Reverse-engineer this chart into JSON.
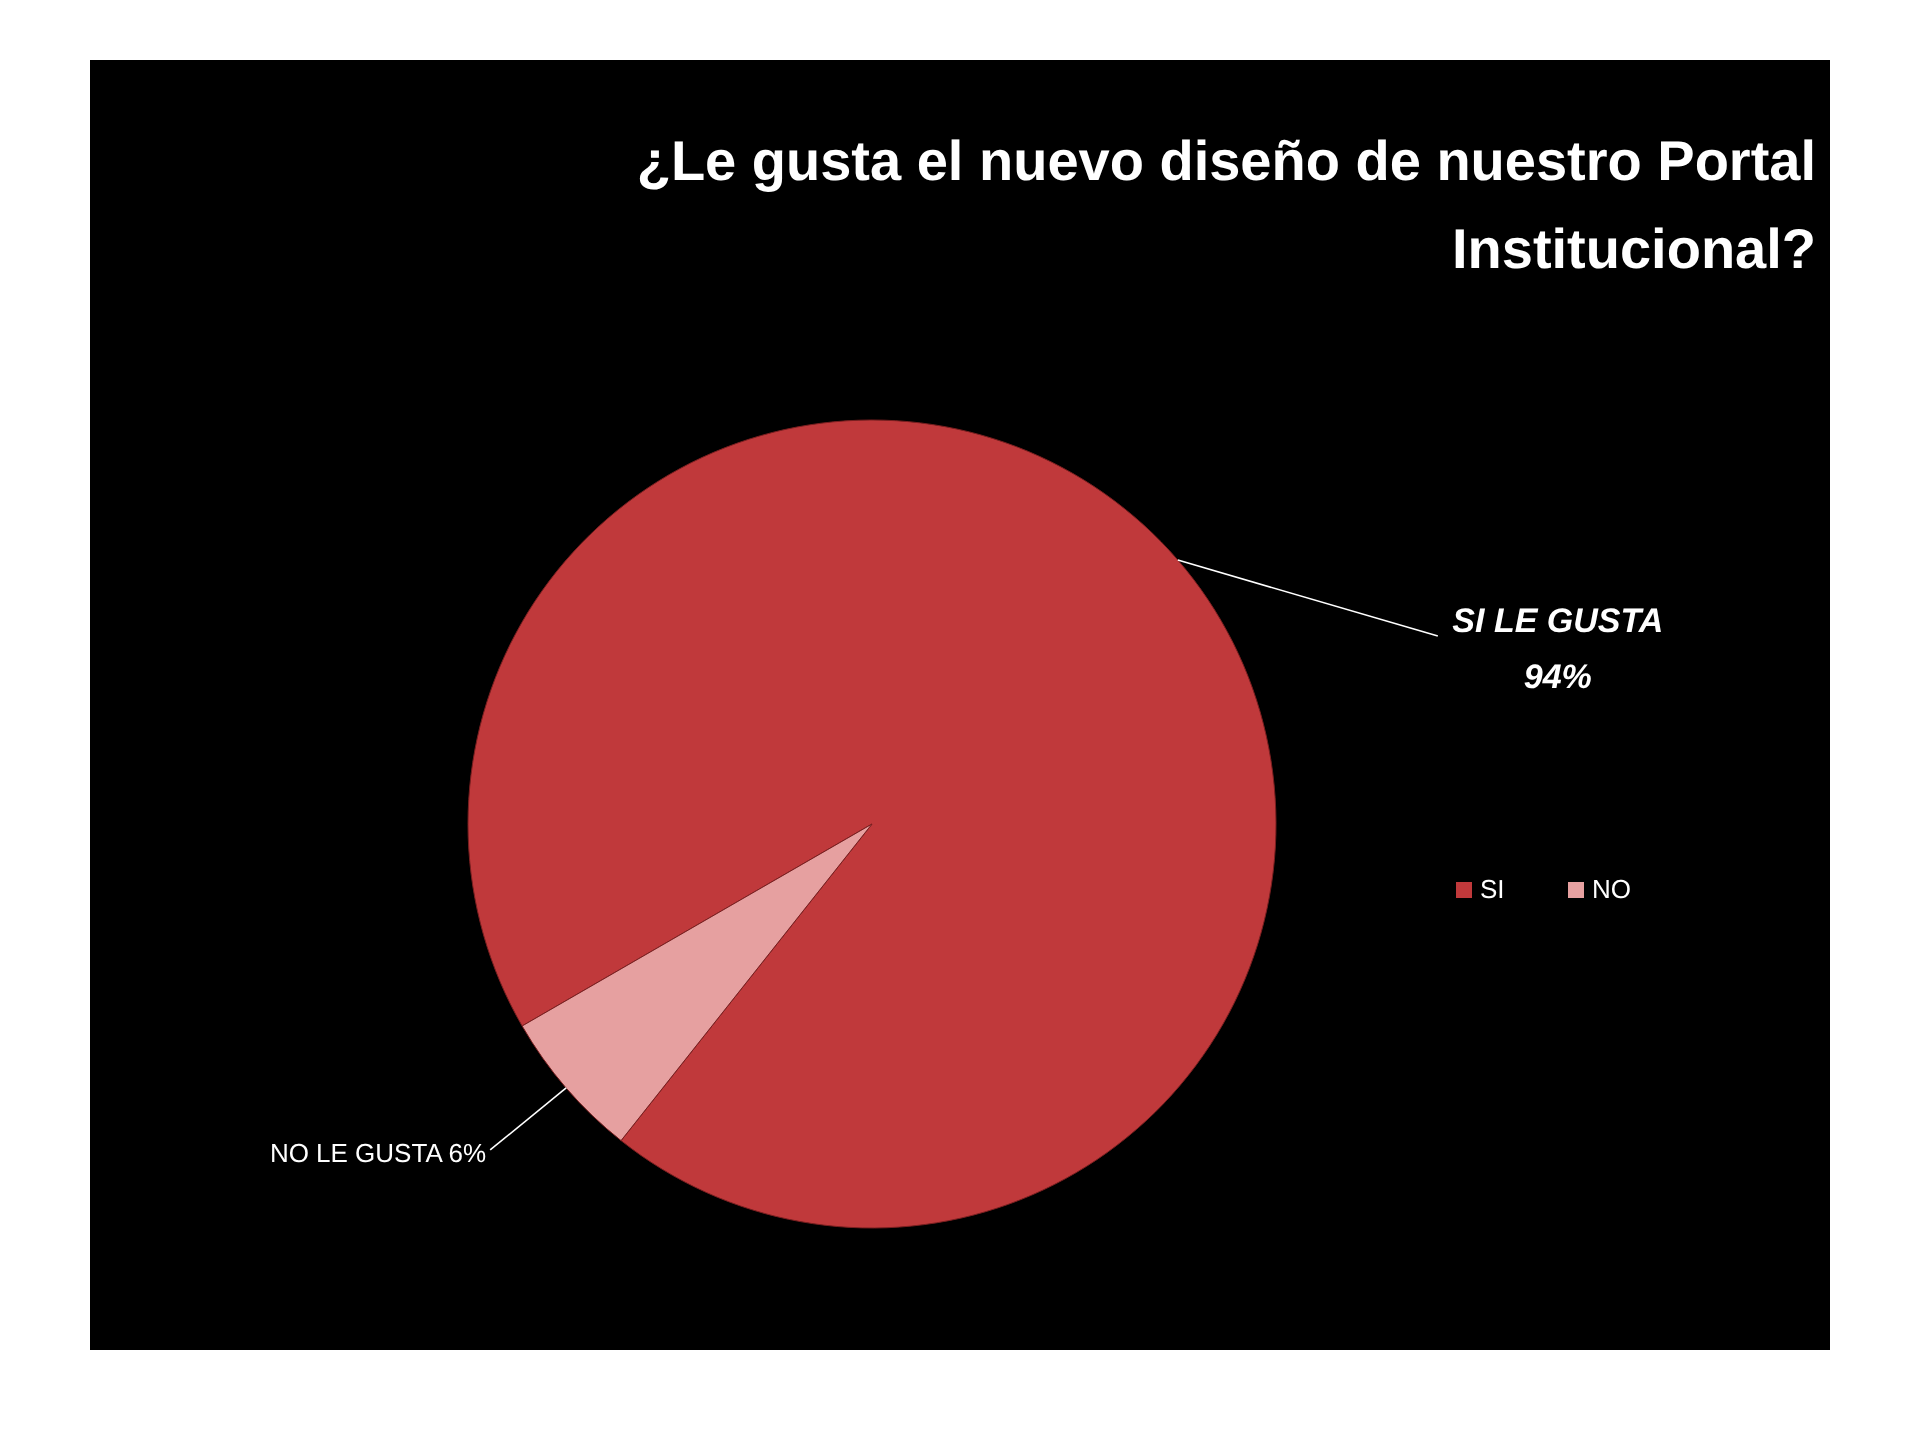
{
  "chart_data": {
    "type": "pie",
    "title": "¿Le gusta el nuevo diseño de nuestro Portal Institucional?",
    "categories": [
      "SI",
      "NO"
    ],
    "values": [
      94,
      6
    ],
    "colors": [
      "#c0393b",
      "#e6a0a0"
    ],
    "value_labels": [
      "SI LE GUSTA 94%",
      "NO LE GUSTA 6%"
    ],
    "legend": "right"
  }
}
